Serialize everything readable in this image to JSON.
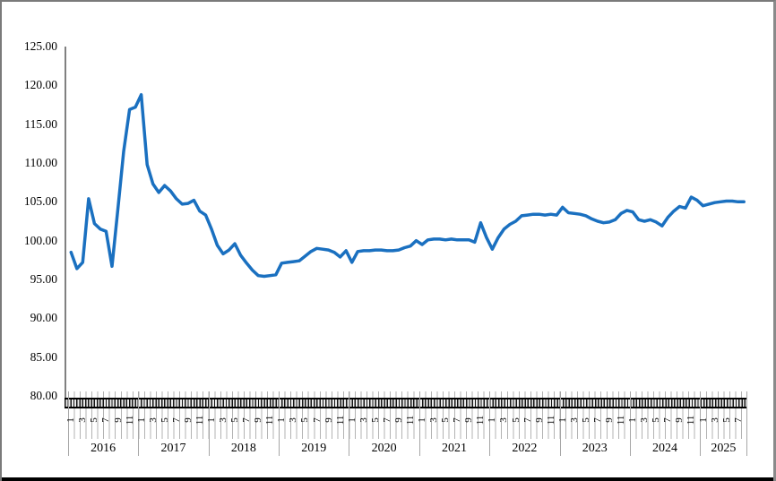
{
  "chart_data": {
    "type": "line",
    "title": "",
    "legend": "none",
    "grid": "off",
    "y_axis": {
      "min": 80,
      "max": 125,
      "step": 5,
      "tick_labels": [
        "125.00",
        "120.00",
        "115.00",
        "110.00",
        "105.00",
        "100.00",
        "95.00",
        "90.00",
        "85.00",
        "80.00"
      ]
    },
    "x_axis": {
      "tick_months": [
        1,
        3,
        5,
        7,
        9,
        11
      ],
      "years": [
        {
          "label": "2016",
          "values": [
            98.5,
            96.4,
            97.2,
            105.4,
            102.2,
            101.5,
            101.2,
            96.7,
            104.0,
            111.5,
            116.9,
            117.2
          ]
        },
        {
          "label": "2017",
          "values": [
            118.8,
            109.8,
            107.3,
            106.2,
            107.1,
            106.4,
            105.4,
            104.7,
            104.8,
            105.2,
            103.8,
            103.3
          ]
        },
        {
          "label": "2018",
          "values": [
            101.5,
            99.4,
            98.3,
            98.8,
            99.6,
            98.1,
            97.1,
            96.2,
            95.5,
            95.4,
            95.5,
            95.6
          ]
        },
        {
          "label": "2019",
          "values": [
            97.1,
            97.2,
            97.3,
            97.4,
            98.0,
            98.6,
            99.0,
            98.9,
            98.8,
            98.5,
            97.9,
            98.7
          ]
        },
        {
          "label": "2020",
          "values": [
            97.2,
            98.6,
            98.7,
            98.7,
            98.8,
            98.8,
            98.7,
            98.7,
            98.8,
            99.1,
            99.3,
            100.0
          ]
        },
        {
          "label": "2021",
          "values": [
            99.5,
            100.1,
            100.2,
            100.2,
            100.1,
            100.2,
            100.1,
            100.1,
            100.1,
            99.8,
            102.3,
            100.4
          ]
        },
        {
          "label": "2022",
          "values": [
            98.9,
            100.4,
            101.5,
            102.1,
            102.5,
            103.2,
            103.3,
            103.4,
            103.4,
            103.3,
            103.4,
            103.3
          ]
        },
        {
          "label": "2023",
          "values": [
            104.3,
            103.6,
            103.5,
            103.4,
            103.2,
            102.8,
            102.5,
            102.3,
            102.4,
            102.7,
            103.5,
            103.9
          ]
        },
        {
          "label": "2024",
          "values": [
            103.7,
            102.7,
            102.5,
            102.7,
            102.4,
            101.9,
            103.0,
            103.8,
            104.4,
            104.2,
            105.6,
            105.2
          ]
        },
        {
          "label": "2025",
          "values": [
            104.5,
            104.7,
            104.9,
            105.0,
            105.1,
            105.1,
            105.0,
            105.0
          ]
        }
      ]
    },
    "series": [
      {
        "name": "index-line",
        "color": "#1a70c0",
        "stroke_width": 3.5
      }
    ]
  },
  "colors": {
    "axis": "#808080",
    "tick_band": "#000000",
    "year_separator": "#a6a6a6",
    "background": "#ffffff",
    "bottom_bar": "#000000"
  }
}
